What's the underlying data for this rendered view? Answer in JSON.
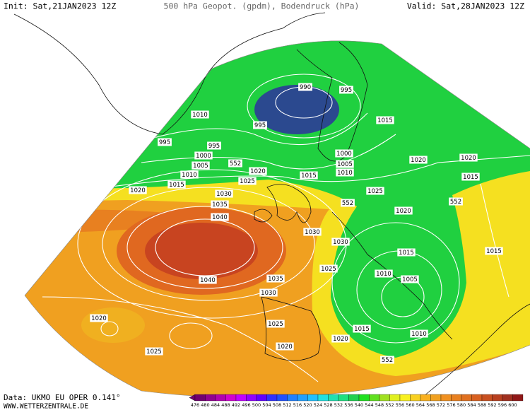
{
  "header": {
    "init": "Init: Sat,21JAN2023 12Z",
    "title": "500 hPa Geopot. (gpdm), Bodendruck (hPa)",
    "valid": "Valid: Sat,28JAN2023 12Z"
  },
  "footer": {
    "source": "Data: UKMO EU OPER 0.141°",
    "site": "WWW.WETTERZENTRALE.DE"
  },
  "isobar_labels": [
    "990",
    "995",
    "1010",
    "995",
    "995",
    "995",
    "1000",
    "1005",
    "1010",
    "552",
    "1020",
    "1015",
    "1020",
    "1025",
    "1030",
    "1035",
    "1040",
    "1040",
    "1035",
    "1030",
    "1025",
    "1020",
    "1025",
    "1020",
    "1030",
    "1030",
    "1025",
    "1015",
    "1000",
    "1005",
    "1010",
    "1015",
    "1025",
    "552",
    "1020",
    "1020",
    "1020",
    "1015",
    "552",
    "1015",
    "1010",
    "1005",
    "1015",
    "1020",
    "1010",
    "552",
    "1015"
  ],
  "colorbar": {
    "values": [
      476,
      480,
      484,
      488,
      492,
      496,
      500,
      504,
      508,
      512,
      516,
      520,
      524,
      528,
      532,
      536,
      540,
      544,
      548,
      552,
      556,
      560,
      564,
      568,
      572,
      576,
      580,
      584,
      588,
      592,
      596,
      600
    ],
    "colors": [
      "#700070",
      "#900090",
      "#b000b0",
      "#d000d0",
      "#c000ff",
      "#9000ff",
      "#6000ff",
      "#3030ff",
      "#2050ff",
      "#2080ff",
      "#20a0ff",
      "#20c0ff",
      "#20e0e0",
      "#20e0b0",
      "#20e080",
      "#20d050",
      "#20e020",
      "#60e020",
      "#a0e020",
      "#e0f020",
      "#f8f020",
      "#f8d020",
      "#f8b020",
      "#f0a020",
      "#f09020",
      "#e88020",
      "#e07020",
      "#d86020",
      "#c85020",
      "#b84020",
      "#a03020",
      "#901818"
    ]
  }
}
